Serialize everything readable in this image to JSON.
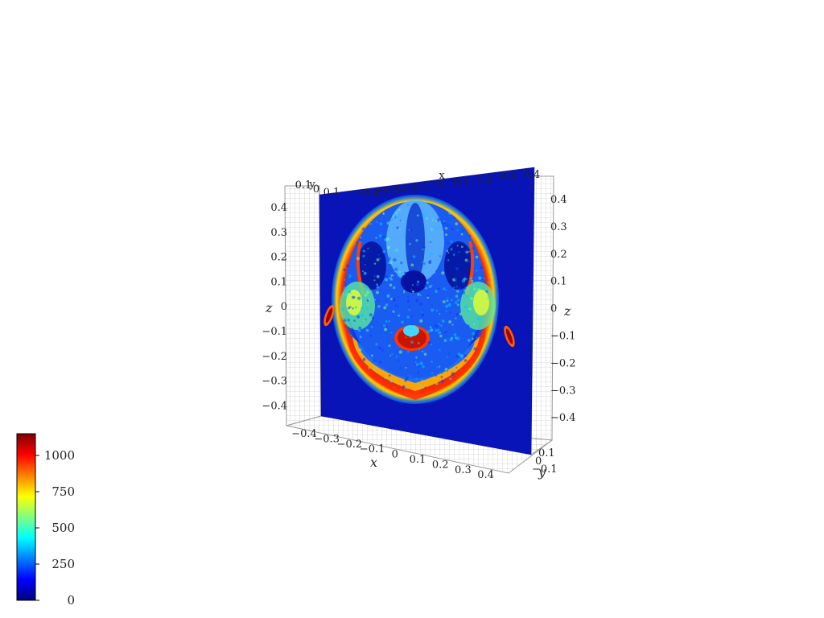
{
  "chart_data": {
    "type": "heatmap",
    "title": "",
    "plot": "3d-slice",
    "colormap": "jet",
    "axes": {
      "x": {
        "label": "x",
        "ticks": [
          "−0.4",
          "−0.3",
          "−0.2",
          "−0.1",
          "0",
          "0.1",
          "0.2",
          "0.3",
          "0.4"
        ]
      },
      "y": {
        "label": "y",
        "ticks": [
          "0.1",
          "0",
          "−0.1"
        ]
      },
      "z": {
        "label": "z",
        "ticks_left": [
          "0.4",
          "0.3",
          "0.2",
          "0.1",
          "0",
          "−0.1",
          "−0.2",
          "−0.3",
          "−0.4"
        ],
        "ticks_right": [
          "0.4",
          "0.3",
          "0.2",
          "0.1",
          "0",
          "−0.1",
          "−0.2",
          "−0.3",
          "−0.4"
        ]
      },
      "top_edge_ticks": [
        "0.1",
        "y",
        "0",
        "0.1",
        "−0.4",
        "−0.3",
        "−0.2",
        "−0.1",
        "0",
        "x",
        "0.1",
        "0.2",
        "0.3",
        "0.4"
      ],
      "grid": true
    },
    "colorbar": {
      "min": 0,
      "max": 1150,
      "ticks": [
        "1000",
        "750",
        "500",
        "250",
        "0"
      ],
      "tick_values": [
        1000,
        750,
        500,
        250,
        0
      ],
      "colors": [
        "#00007f",
        "#0000ff",
        "#007fff",
        "#00ffff",
        "#7fff7f",
        "#ffff00",
        "#ff7f00",
        "#ff0000",
        "#7f0000"
      ]
    },
    "image_content": "axial MRI slice of head (jet colormap)",
    "background_level": 120
  }
}
